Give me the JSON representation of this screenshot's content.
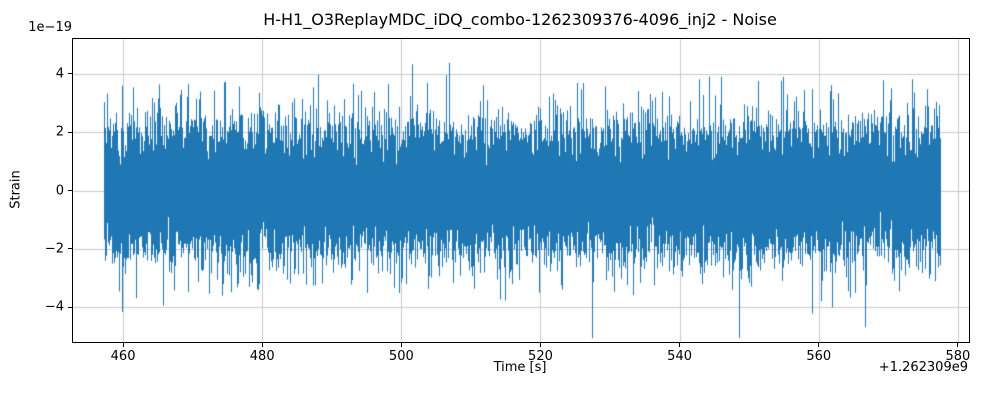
{
  "figure": {
    "title": "H-H1_O3ReplayMDC_iDQ_combo-1262309376-4096_inj2 - Noise",
    "xlabel": "Time [s]",
    "ylabel": "Strain",
    "y_offset_text": "1e−19",
    "x_offset_text": "+1.262309e9"
  },
  "chart_data": {
    "type": "line",
    "title": "H-H1_O3ReplayMDC_iDQ_combo-1262309376-4096_inj2 - Noise",
    "xlabel": "Time [s]",
    "ylabel": "Strain",
    "x_offset": 1262309000,
    "y_scale": 1e-19,
    "xlim": [
      452.8,
      581.6
    ],
    "ylim": [
      -5.2e-19,
      5.2e-19
    ],
    "xtick_values": [
      460,
      480,
      500,
      520,
      540,
      560,
      580
    ],
    "xtick_labels": [
      "460",
      "480",
      "500",
      "520",
      "540",
      "560",
      "580"
    ],
    "ytick_values_scaled": [
      -4,
      -2,
      0,
      2,
      4
    ],
    "ytick_labels": [
      "−4",
      "−2",
      "0",
      "2",
      "4"
    ],
    "grid": true,
    "grid_color": "#c8c8c8",
    "series": [
      {
        "name": "noise",
        "kind": "gaussian-noise",
        "color": "#1f77b4",
        "x_start": 457.2,
        "x_end": 577.4,
        "std": 1.1e-19,
        "observed_min": -4.8e-19,
        "observed_max": 4.9e-19,
        "dense_band": [
          -2e-19,
          2e-19
        ],
        "samples_per_pixel": 24,
        "seed": 7
      }
    ]
  }
}
